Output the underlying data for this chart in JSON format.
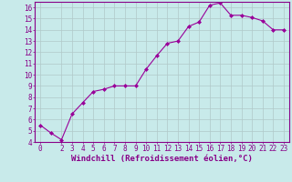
{
  "x": [
    0,
    1,
    2,
    3,
    4,
    5,
    6,
    7,
    8,
    9,
    10,
    11,
    12,
    13,
    14,
    15,
    16,
    17,
    18,
    19,
    20,
    21,
    22,
    23
  ],
  "y": [
    5.5,
    4.8,
    4.2,
    6.5,
    7.5,
    8.5,
    8.7,
    9.0,
    9.0,
    9.0,
    10.5,
    11.7,
    12.8,
    13.0,
    14.3,
    14.7,
    16.2,
    16.4,
    15.3,
    15.3,
    15.1,
    14.8,
    14.0,
    14.0
  ],
  "line_color": "#990099",
  "marker": "D",
  "marker_size": 2,
  "bg_color": "#c8eaea",
  "grid_color": "#b0c8c8",
  "xlabel": "Windchill (Refroidissement éolien,°C)",
  "xlim_min": -0.5,
  "xlim_max": 23.5,
  "ylim_min": 4,
  "ylim_max": 16.5,
  "yticks": [
    4,
    5,
    6,
    7,
    8,
    9,
    10,
    11,
    12,
    13,
    14,
    15,
    16
  ],
  "xticks": [
    0,
    2,
    3,
    4,
    5,
    6,
    7,
    8,
    9,
    10,
    11,
    12,
    13,
    14,
    15,
    16,
    17,
    18,
    19,
    20,
    21,
    22,
    23
  ],
  "tick_color": "#880088",
  "label_color": "#880088",
  "axis_color": "#880088",
  "xlabel_fontsize": 6.5,
  "tick_fontsize": 5.5
}
